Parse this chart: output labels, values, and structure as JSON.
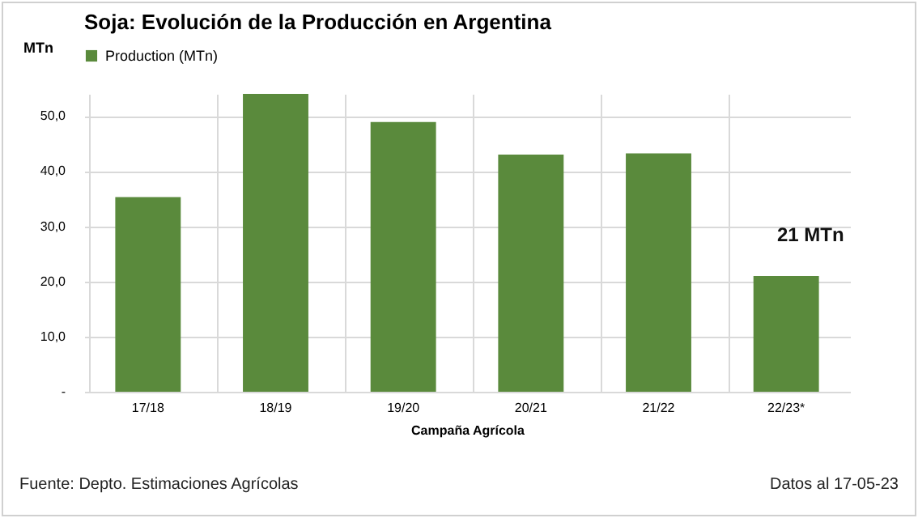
{
  "chart_data": {
    "type": "bar",
    "title": "Soja: Evolución de la Producción en Argentina",
    "xlabel": "Campaña  Agrícola",
    "ylabel": "MTn",
    "categories": [
      "17/18",
      "18/19",
      "19/20",
      "20/21",
      "21/22",
      "22/23*"
    ],
    "series": [
      {
        "name": "Production (MTn)",
        "color": "#5a8a3c",
        "values": [
          35.3,
          54.0,
          48.9,
          43.0,
          43.2,
          21
        ]
      }
    ],
    "ylim": [
      0,
      54
    ],
    "yticks": [
      {
        "value": 0,
        "label": "-"
      },
      {
        "value": 10,
        "label": "10,0"
      },
      {
        "value": 20,
        "label": "20,0"
      },
      {
        "value": 30,
        "label": "30,0"
      },
      {
        "value": 40,
        "label": "40,0"
      },
      {
        "value": 50,
        "label": "50,0"
      }
    ],
    "grid": true,
    "legend": "top",
    "annotations": [
      "21 MTn",
      "Fuente: Depto. Estimaciones Agrícolas",
      "Datos al 17-05-23"
    ]
  }
}
